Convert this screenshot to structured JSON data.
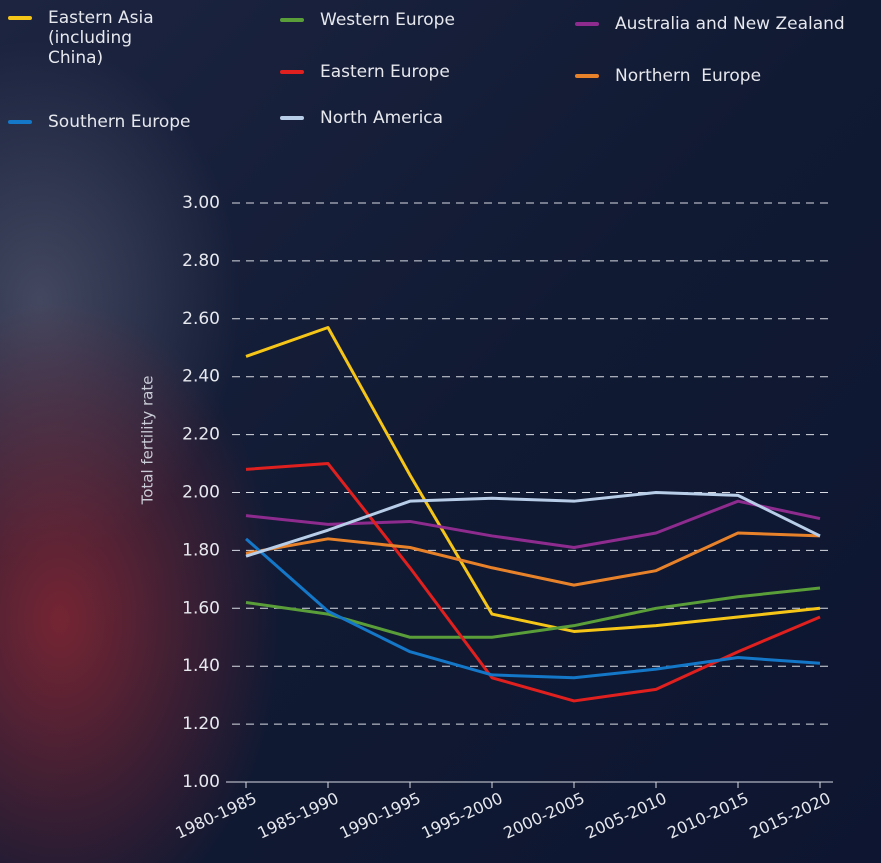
{
  "chart_data": {
    "type": "line",
    "y_label": "Total fertility rate",
    "categories": [
      "1980-1985",
      "1985-1990",
      "1990-1995",
      "1995-2000",
      "2000-2005",
      "2005-2010",
      "2010-2015",
      "2015-2020"
    ],
    "ylim": [
      1,
      3
    ],
    "yticks": [
      {
        "value": 1,
        "label": "1.00"
      },
      {
        "value": 1.2,
        "label": "1.20"
      },
      {
        "value": 1.4,
        "label": "1.40"
      },
      {
        "value": 1.6,
        "label": "1.60"
      },
      {
        "value": 1.8,
        "label": "1.80"
      },
      {
        "value": 2,
        "label": "2.00"
      },
      {
        "value": 2.2,
        "label": "2.20"
      },
      {
        "value": 2.4,
        "label": "2.40"
      },
      {
        "value": 2.6,
        "label": "2.60"
      },
      {
        "value": 2.8,
        "label": "2.80"
      },
      {
        "value": 3,
        "label": "3.00"
      }
    ],
    "grid": true,
    "series": [
      {
        "name": "Eastern Asia (including China)",
        "color": "#f5c518",
        "values": [
          2.47,
          2.57,
          2.06,
          1.58,
          1.52,
          1.54,
          1.57,
          1.6
        ]
      },
      {
        "name": "Western Europe",
        "color": "#5a9e3a",
        "values": [
          1.62,
          1.58,
          1.5,
          1.5,
          1.54,
          1.6,
          1.64,
          1.67
        ]
      },
      {
        "name": "Australia and New Zealand",
        "color": "#8e2b8e",
        "values": [
          1.92,
          1.89,
          1.9,
          1.85,
          1.81,
          1.86,
          1.97,
          1.91
        ]
      },
      {
        "name": "Eastern Europe",
        "color": "#e0201e",
        "values": [
          2.08,
          2.1,
          1.74,
          1.36,
          1.28,
          1.32,
          1.45,
          1.57
        ]
      },
      {
        "name": "Northern  Europe",
        "color": "#e8822a",
        "values": [
          1.79,
          1.84,
          1.81,
          1.74,
          1.68,
          1.73,
          1.86,
          1.85
        ]
      },
      {
        "name": "Southern Europe",
        "color": "#1477c8",
        "values": [
          1.84,
          1.59,
          1.45,
          1.37,
          1.36,
          1.39,
          1.43,
          1.41
        ]
      },
      {
        "name": "North America",
        "color": "#b7cde8",
        "values": [
          1.78,
          1.87,
          1.97,
          1.98,
          1.97,
          2.0,
          1.99,
          1.85
        ]
      }
    ]
  }
}
